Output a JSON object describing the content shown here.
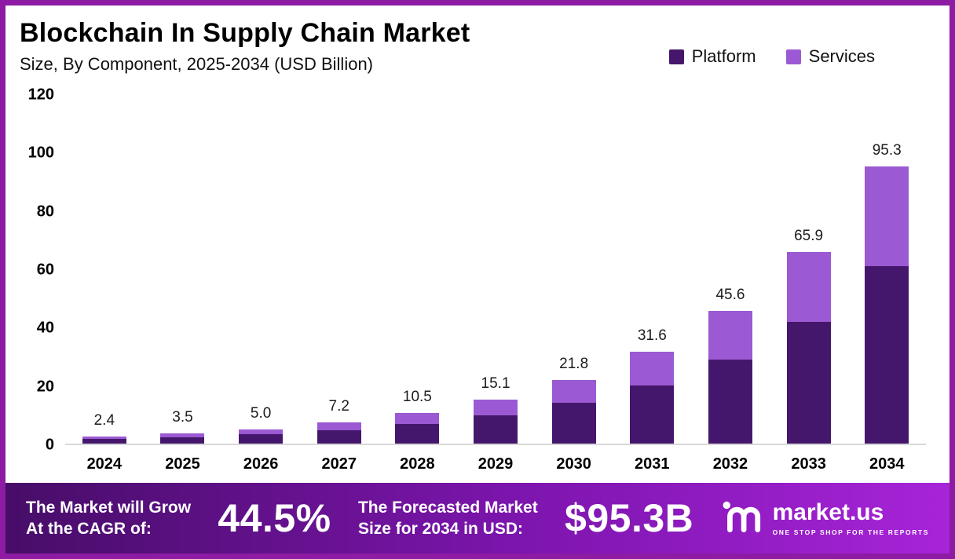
{
  "header": {
    "title": "Blockchain In Supply Chain Market",
    "subtitle": "Size, By Component, 2025-2034 (USD Billion)"
  },
  "legend": [
    {
      "label": "Platform"
    },
    {
      "label": "Services"
    }
  ],
  "chart_data": {
    "type": "bar",
    "stacked": true,
    "title": "Blockchain In Supply Chain Market",
    "subtitle": "Size, By Component, 2025-2034 (USD Billion)",
    "categories": [
      "2024",
      "2025",
      "2026",
      "2027",
      "2028",
      "2029",
      "2030",
      "2031",
      "2032",
      "2033",
      "2034"
    ],
    "series": [
      {
        "name": "Platform",
        "color": "#45176c",
        "values": [
          1.6,
          2.3,
          3.3,
          4.7,
          6.8,
          9.7,
          14.0,
          20.0,
          29.0,
          42.0,
          61.0
        ]
      },
      {
        "name": "Services",
        "color": "#9b5ad3",
        "values": [
          0.8,
          1.2,
          1.7,
          2.5,
          3.7,
          5.4,
          7.8,
          11.6,
          16.6,
          23.9,
          34.3
        ]
      }
    ],
    "totals": [
      2.4,
      3.5,
      5.0,
      7.2,
      10.5,
      15.1,
      21.8,
      31.6,
      45.6,
      65.9,
      95.3
    ],
    "ylim": [
      0,
      120
    ],
    "yticks": [
      0,
      20,
      40,
      60,
      80,
      100,
      120
    ],
    "xlabel": "",
    "ylabel": "",
    "grid": false,
    "legend_position": "top-right"
  },
  "footer": {
    "cagr_line1": "The Market will Grow",
    "cagr_line2": "At the CAGR of:",
    "cagr_value": "44.5%",
    "forecast_line1": "The Forecasted Market",
    "forecast_line2": "Size for 2034 in USD:",
    "forecast_value": "$95.3B",
    "brand": "market.us",
    "brand_tagline": "ONE STOP SHOP FOR THE REPORTS"
  }
}
